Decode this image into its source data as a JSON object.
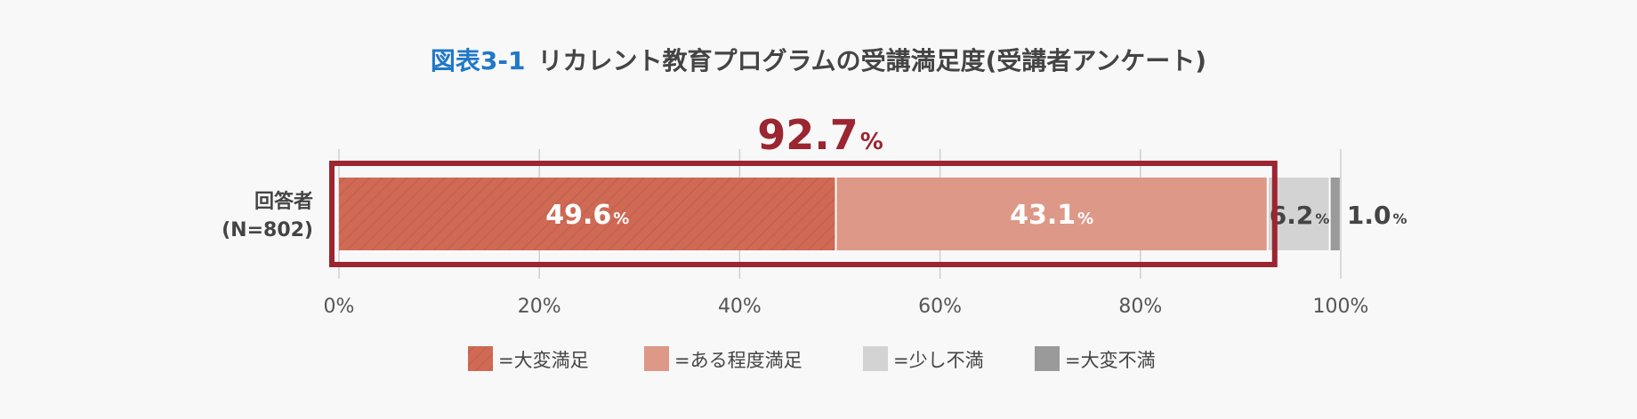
{
  "chart_data": {
    "type": "bar",
    "orientation": "horizontal",
    "stacked": true,
    "title_prefix": "図表3-1",
    "title": "リカレント教育プログラムの受講満足度(受講者アンケート)",
    "category": [
      "回答者",
      "(N=802)"
    ],
    "highlight_total": "92.7",
    "highlight_unit": "%",
    "series": [
      {
        "name": "=大変満足",
        "value": 49.6,
        "label": "49.6",
        "color": "#d06a55",
        "hatched": true
      },
      {
        "name": "=ある程度満足",
        "value": 43.1,
        "label": "43.1",
        "color": "#dd9887",
        "hatched": false
      },
      {
        "name": "=少し不満",
        "value": 6.2,
        "label": "6.2",
        "color": "#d3d3d3",
        "hatched": false
      },
      {
        "name": "=大変不満",
        "value": 1.0,
        "label": "1.0",
        "color": "#9a9a9a",
        "hatched": false
      }
    ],
    "value_unit": "%",
    "xlim": [
      0,
      100
    ],
    "xticks": [
      0,
      20,
      40,
      60,
      80,
      100
    ],
    "xtick_labels": [
      "0%",
      "20%",
      "40%",
      "60%",
      "80%",
      "100%"
    ],
    "grid": true,
    "legend_position": "bottom",
    "highlight_color": "#9b2530"
  }
}
